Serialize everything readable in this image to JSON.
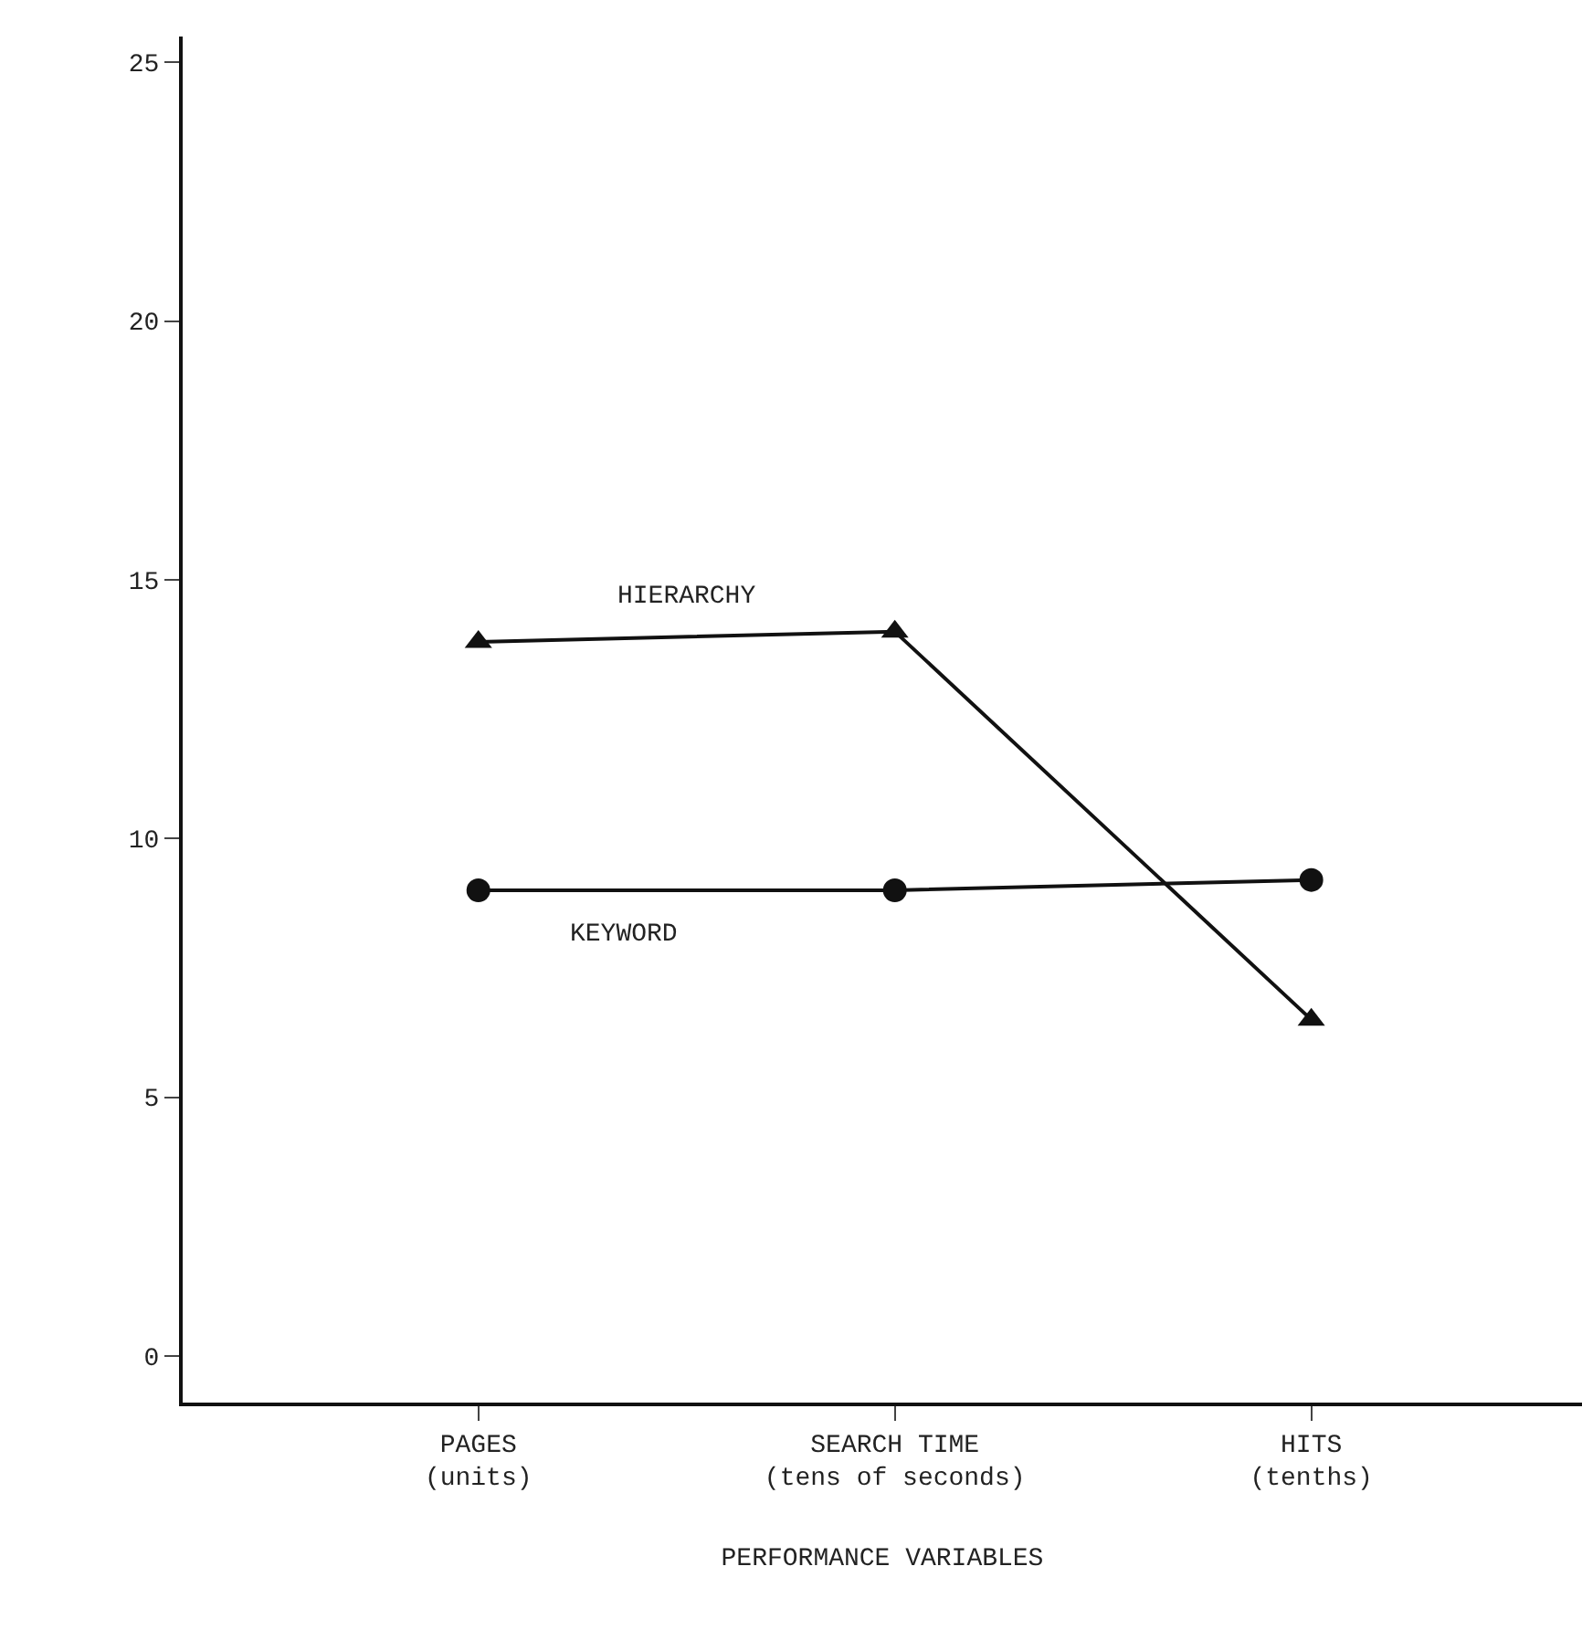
{
  "chart_data": {
    "type": "line",
    "xlabel": "PERFORMANCE VARIABLES",
    "categories": [
      "PAGES\n(units)",
      "SEARCH TIME\n(tens of seconds)",
      "HITS\n(tenths)"
    ],
    "series": [
      {
        "name": "HIERARCHY",
        "color": "#111111",
        "marker": "triangle",
        "values": [
          13.8,
          14.0,
          6.5
        ]
      },
      {
        "name": "KEYWORD",
        "color": "#111111",
        "marker": "circle",
        "values": [
          9.0,
          9.0,
          9.2
        ]
      }
    ],
    "ylim": [
      -0.9,
      25.5
    ],
    "yticks": [
      0,
      5,
      10,
      15,
      20,
      25
    ],
    "legend": false,
    "line_style": "solid"
  }
}
